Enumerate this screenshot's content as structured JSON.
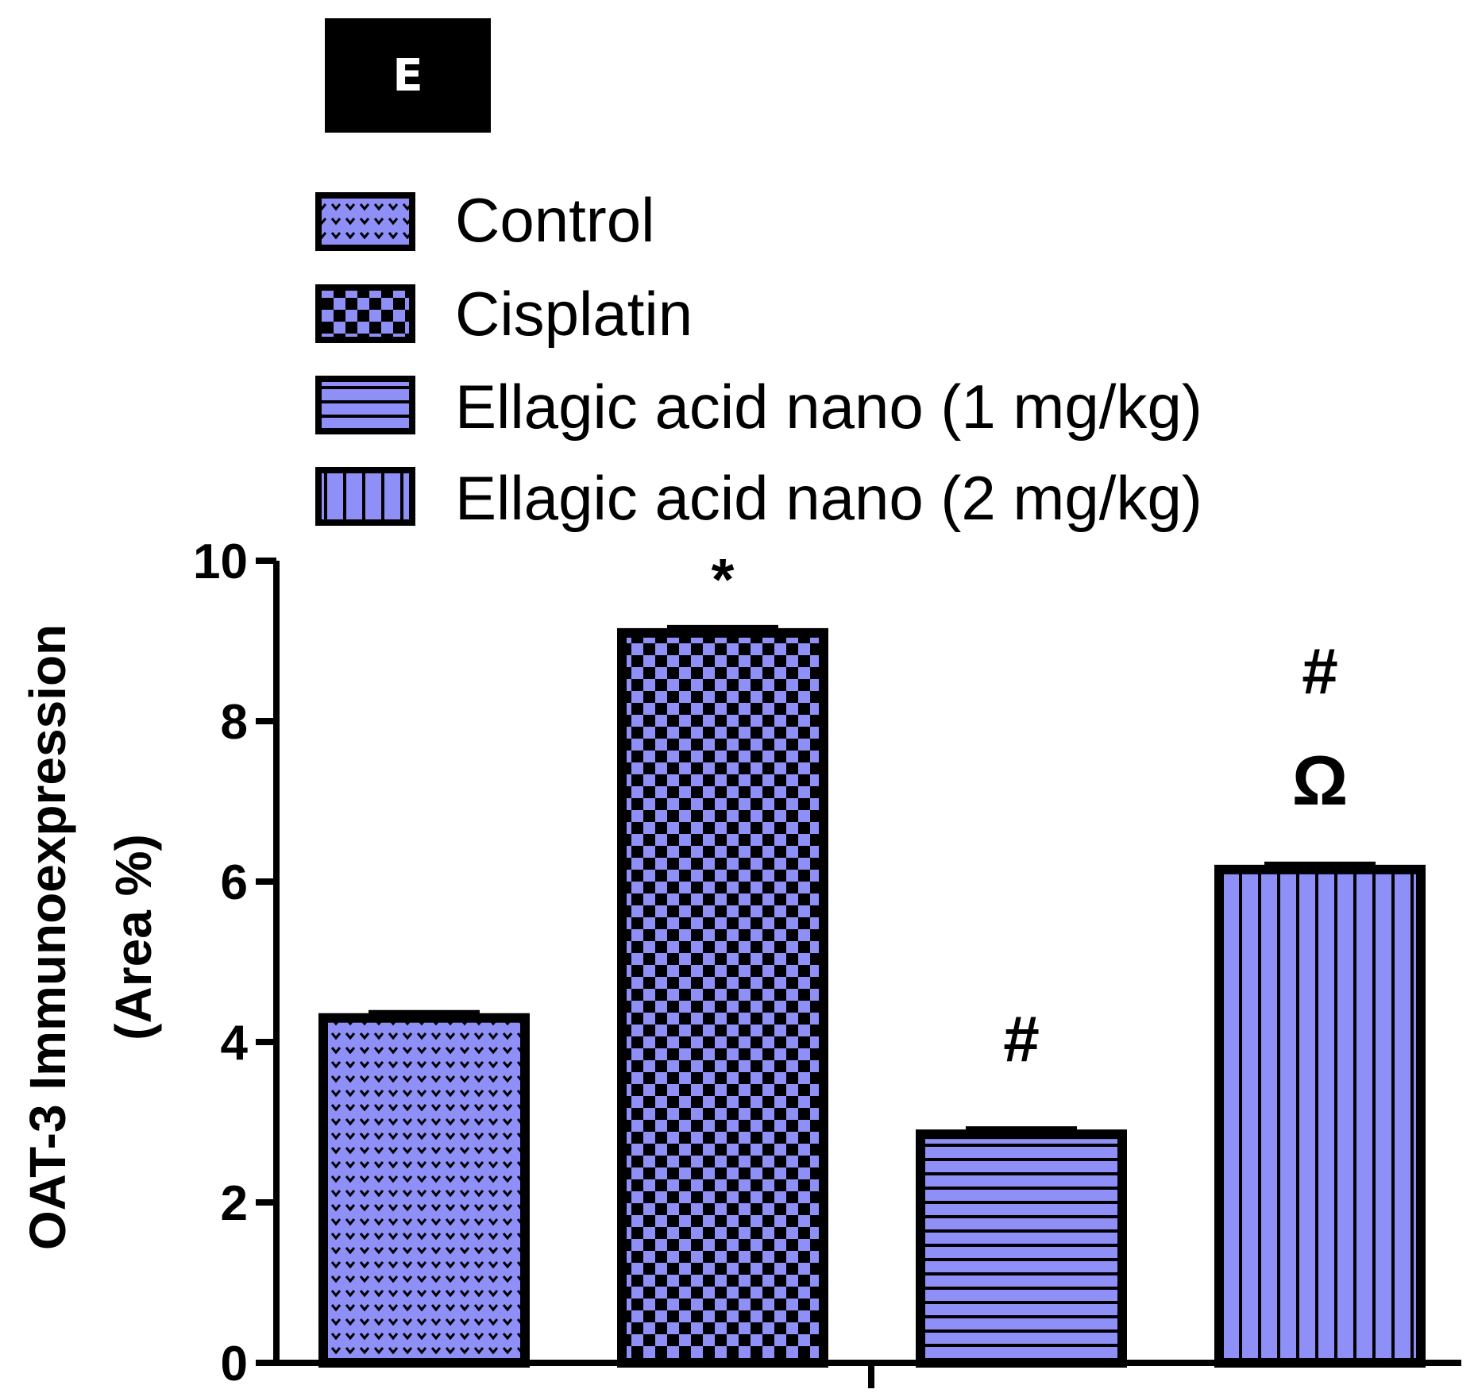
{
  "panel_label": "E",
  "colors": {
    "bar_fill": "#8f8ff8",
    "pattern_dark": "#000000",
    "axis": "#000000"
  },
  "chart_data": {
    "type": "bar",
    "title": "",
    "xlabel": "",
    "ylabel_line1": "OAT-3 Immunoexpression",
    "ylabel_line2": "(Area %)",
    "ylim": [
      0,
      10
    ],
    "yticks": [
      "0",
      "2",
      "4",
      "6",
      "8",
      "10"
    ],
    "grid": false,
    "legend_position": "top",
    "series": [
      {
        "name": "Control",
        "value": 4.3,
        "pattern": "dots",
        "annotation": ""
      },
      {
        "name": "Cisplatin",
        "value": 9.1,
        "pattern": "checker",
        "annotation": "*"
      },
      {
        "name": "Ellagic acid nano (1 mg/kg)",
        "value": 2.85,
        "pattern": "hstripes",
        "annotation": "#"
      },
      {
        "name": "Ellagic acid nano (2 mg/kg)",
        "value": 6.15,
        "pattern": "vstripes",
        "annotation": "#",
        "annotation2": "Ω"
      }
    ]
  }
}
